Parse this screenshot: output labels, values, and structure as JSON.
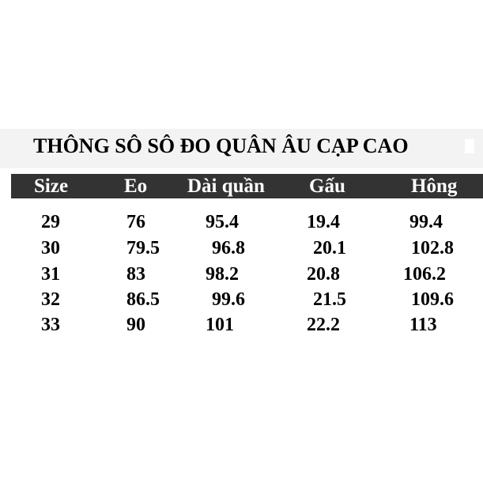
{
  "title": "THÔNG SÔ SÔ ĐO QUÂN ÂU CẠP CAO",
  "columns": [
    "Size",
    "Eo",
    "Dài quần",
    "Gấu",
    "Hông"
  ],
  "rows": [
    [
      "29",
      "76",
      "95.4",
      "19.4",
      "99.4"
    ],
    [
      "30",
      "79.5",
      "96.8",
      "20.1",
      "102.8"
    ],
    [
      "31",
      "83",
      "98.2",
      "20.8",
      "106.2"
    ],
    [
      "32",
      "86.5",
      "99.6",
      "21.5",
      "109.6"
    ],
    [
      "33",
      "90",
      "101",
      "22.2",
      "113"
    ]
  ],
  "colors": {
    "header_bg": "#333333",
    "title_band": "#f3f3f3"
  }
}
